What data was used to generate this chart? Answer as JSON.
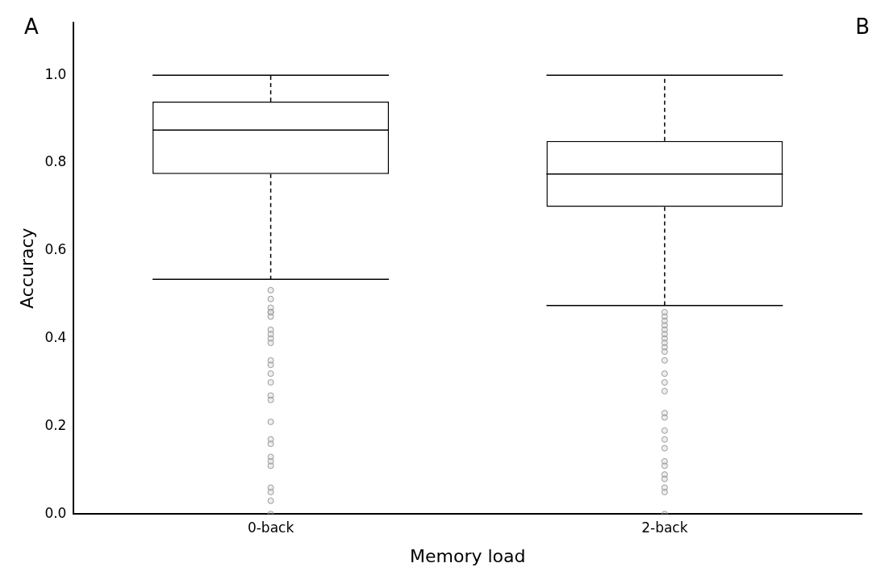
{
  "chart_data": {
    "type": "box",
    "xlabel": "Memory load",
    "ylabel": "Accuracy",
    "categories": [
      "0-back",
      "2-back"
    ],
    "boxes": [
      {
        "low": 0.535,
        "q1": 0.775,
        "median": 0.875,
        "q3": 0.94,
        "high": 1.0,
        "outliers": [
          0.51,
          0.49,
          0.47,
          0.46,
          0.46,
          0.45,
          0.42,
          0.41,
          0.4,
          0.39,
          0.35,
          0.34,
          0.32,
          0.3,
          0.27,
          0.26,
          0.21,
          0.17,
          0.16,
          0.13,
          0.12,
          0.11,
          0.06,
          0.05,
          0.03,
          0.0
        ]
      },
      {
        "low": 0.475,
        "q1": 0.7,
        "median": 0.775,
        "q3": 0.85,
        "high": 1.0,
        "outliers": [
          0.46,
          0.45,
          0.44,
          0.43,
          0.42,
          0.41,
          0.4,
          0.39,
          0.38,
          0.37,
          0.35,
          0.32,
          0.3,
          0.28,
          0.23,
          0.22,
          0.19,
          0.17,
          0.15,
          0.12,
          0.11,
          0.09,
          0.08,
          0.06,
          0.05,
          0.0
        ]
      }
    ],
    "ylim": [
      0,
      1.12
    ],
    "yticks": [
      {
        "value": 0,
        "label": "0.0"
      },
      {
        "value": 0.2,
        "label": "0.2"
      },
      {
        "value": 0.4,
        "label": "0.4"
      },
      {
        "value": 0.6,
        "label": "0.6"
      },
      {
        "value": 0.8,
        "label": "0.8"
      },
      {
        "value": 1,
        "label": "1.0"
      }
    ],
    "grid": false,
    "legend": false,
    "marker": "circle",
    "annotations": [
      "A",
      "B"
    ]
  }
}
